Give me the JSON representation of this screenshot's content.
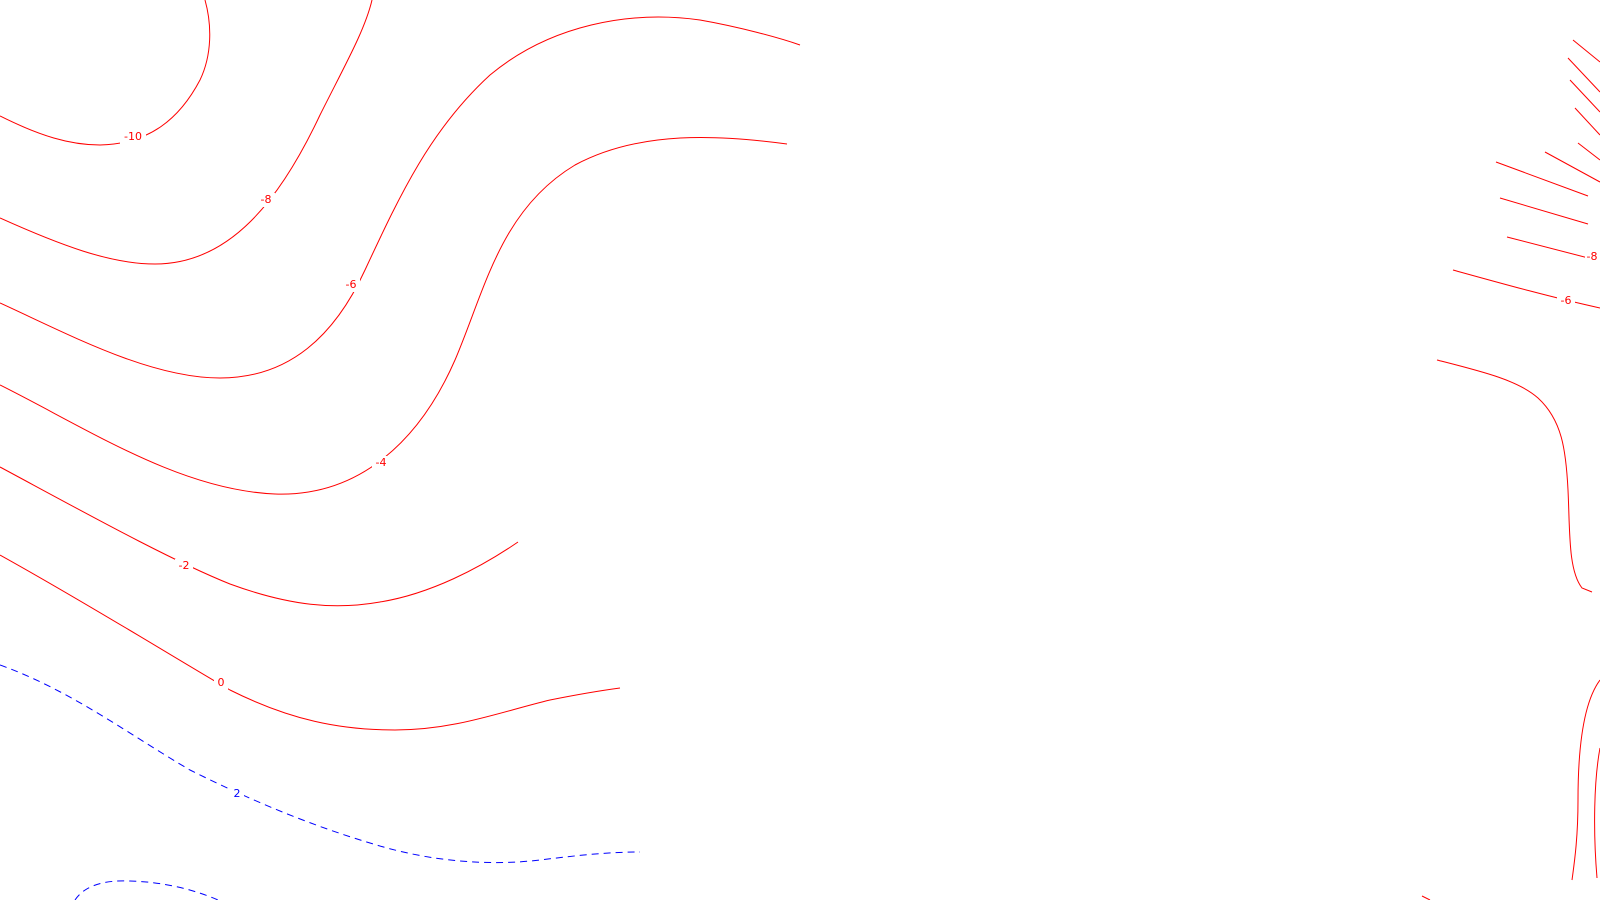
{
  "map": {
    "colors": {
      "background": "#ffffff",
      "contour_primary": "#ff0000",
      "contour_dashed": "#0000ff"
    },
    "contour_labels": {
      "left_m10": "-10",
      "left_m8": "-8",
      "left_m6": "-6",
      "left_m4": "-4",
      "left_m2": "-2",
      "left_0": "0",
      "left_dashed_2": "2",
      "right_m8": "-8",
      "right_m6": "-6"
    }
  }
}
